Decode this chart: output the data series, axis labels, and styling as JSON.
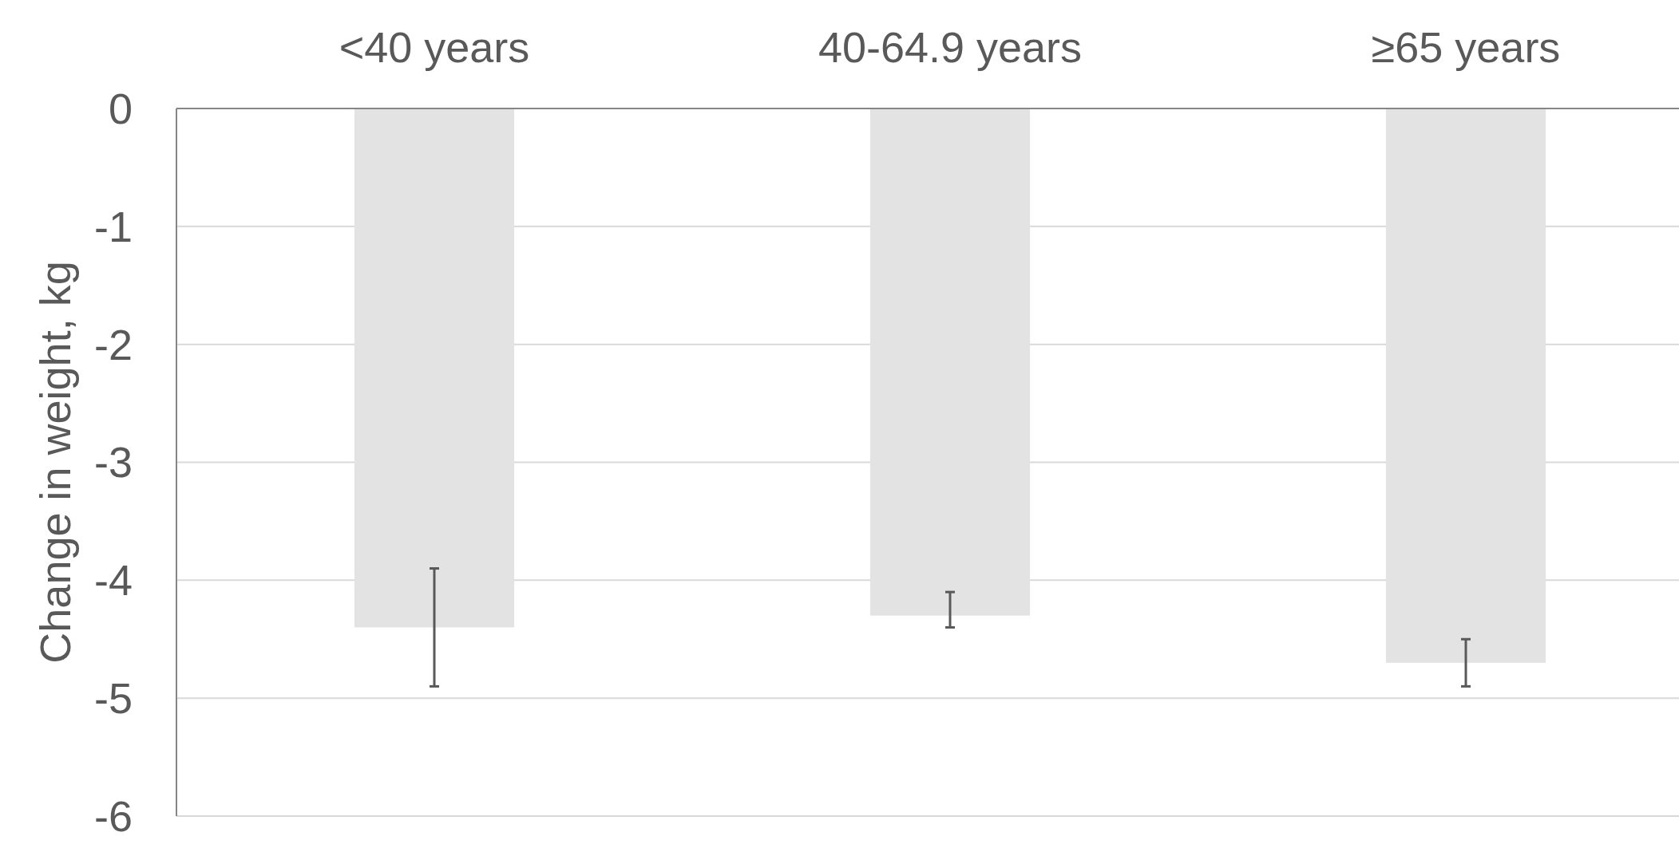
{
  "chart_data": {
    "type": "bar",
    "categories": [
      "<40 years",
      "40-64.9 years",
      "≥65 years"
    ],
    "values": [
      -4.4,
      -4.3,
      -4.7
    ],
    "color": "#e3e3e3",
    "errors": [
      [
        -4.9,
        -3.9
      ],
      [
        -4.4,
        -4.1
      ],
      [
        -4.9,
        -4.5
      ]
    ],
    "ylabel": "Change in weight, kg",
    "ylim": [
      -6,
      0
    ],
    "yticks": [
      -6,
      -5,
      -4,
      -3,
      -2,
      -1,
      0
    ],
    "grid": "y"
  }
}
